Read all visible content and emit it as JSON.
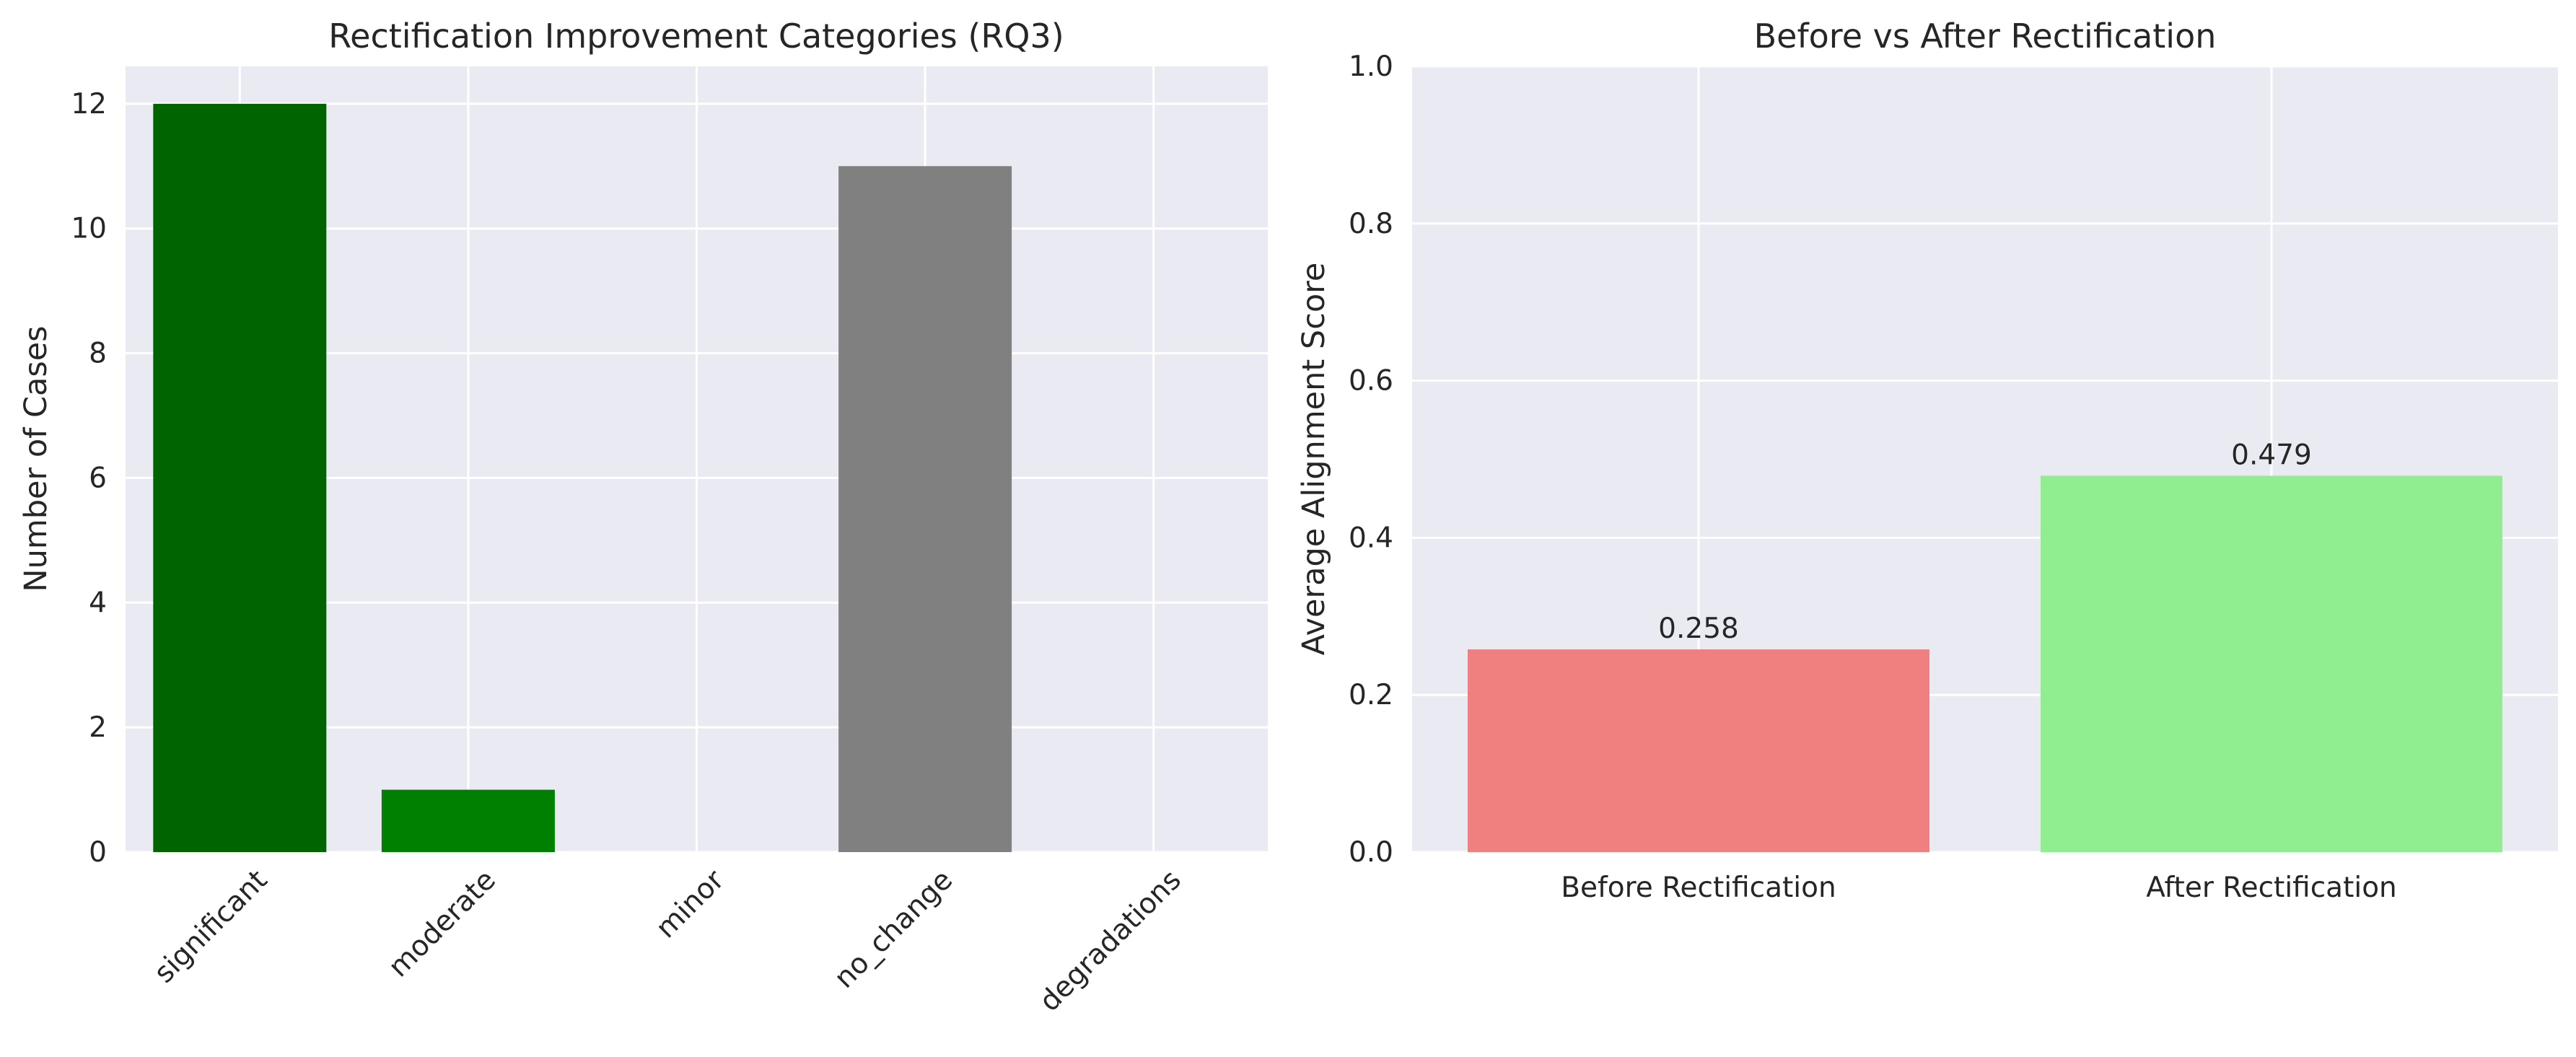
{
  "chart_data": [
    {
      "type": "bar",
      "title": "Rectification Improvement Categories (RQ3)",
      "xlabel": "",
      "ylabel": "Number of Cases",
      "categories": [
        "significant",
        "moderate",
        "minor",
        "no_change",
        "degradations"
      ],
      "values": [
        12,
        1,
        0,
        11,
        0
      ],
      "colors": [
        "#006400",
        "#008000",
        "#ffffff",
        "#808080",
        "#8b0000"
      ],
      "ylim": [
        0,
        12.6
      ],
      "yticks": [
        "0",
        "2",
        "4",
        "6",
        "8",
        "10",
        "12"
      ],
      "xtick_rotation": -45,
      "grid": true
    },
    {
      "type": "bar",
      "title": "Before vs After Rectification",
      "xlabel": "",
      "ylabel": "Average Alignment Score",
      "categories": [
        "Before Rectification",
        "After Rectification"
      ],
      "values": [
        0.258,
        0.479
      ],
      "data_labels": [
        "0.258",
        "0.479"
      ],
      "colors": [
        "#f08080",
        "#90ee90"
      ],
      "ylim": [
        0,
        1.0
      ],
      "yticks": [
        "0.0",
        "0.2",
        "0.4",
        "0.6",
        "0.8",
        "1.0"
      ],
      "grid": true
    }
  ]
}
